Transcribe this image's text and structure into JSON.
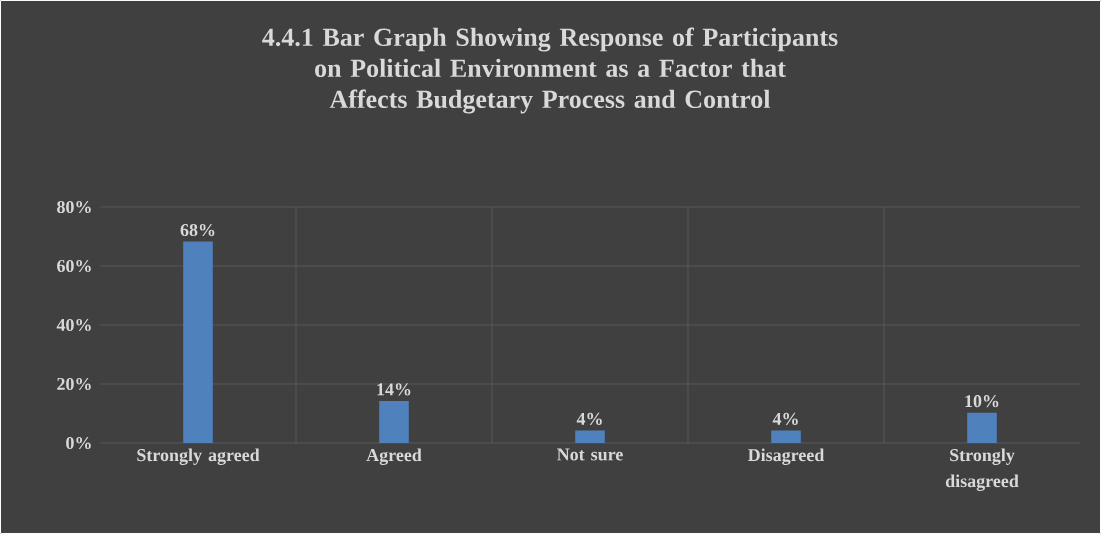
{
  "chart_data": {
    "type": "bar",
    "title": "4.4.1 Bar Graph Showing Response of Participants on Political Environment as a Factor that Affects Budgetary Process and Control",
    "categories": [
      "Strongly agreed",
      "Agreed",
      "Not sure",
      "Disagreed",
      "Strongly disagreed"
    ],
    "values": [
      68,
      14,
      4,
      4,
      10
    ],
    "value_labels": [
      "68%",
      "14%",
      "4%",
      "4%",
      "10%"
    ],
    "color": "#4f81bd",
    "ylim": [
      0,
      80
    ],
    "yticks": [
      {
        "value": 0,
        "label": "0%"
      },
      {
        "value": 20,
        "label": "20%"
      },
      {
        "value": 40,
        "label": "40%"
      },
      {
        "value": 60,
        "label": "60%"
      },
      {
        "value": 80,
        "label": "80%"
      }
    ],
    "grid": true
  }
}
